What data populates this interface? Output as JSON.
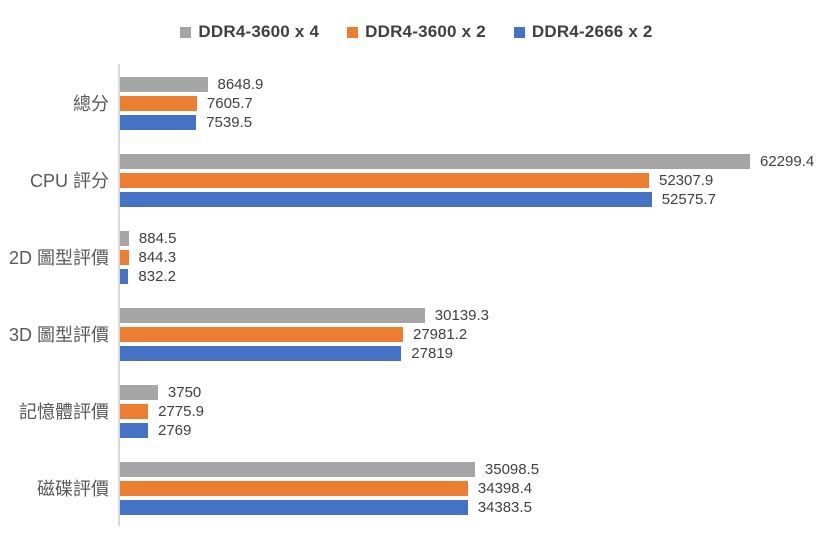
{
  "legend": {
    "items": [
      {
        "label": "DDR4-3600 x 4",
        "color": "#A5A5A5"
      },
      {
        "label": "DDR4-3600 x 2",
        "color": "#ED7D31"
      },
      {
        "label": "DDR4-2666 x 2",
        "color": "#4472C4"
      }
    ]
  },
  "chart_data": {
    "type": "bar",
    "orientation": "horizontal",
    "title": "",
    "xlabel": "",
    "ylabel": "",
    "value_axis_hidden": true,
    "grid": false,
    "data_labels": true,
    "legend_position": "top",
    "axis_line_color": "#D9D9D9",
    "categories": [
      "總分",
      "CPU 評分",
      "2D 圖型評價",
      "3D 圖型評價",
      "記憶體評價",
      "磁碟評價"
    ],
    "series": [
      {
        "name": "DDR4-3600 x 4",
        "color": "#A5A5A5",
        "values": [
          8648.9,
          62299.4,
          884.5,
          30139.3,
          3750,
          35098.5
        ],
        "labels": [
          "8648.9",
          "62299.4",
          "884.5",
          "30139.3",
          "3750",
          "35098.5"
        ]
      },
      {
        "name": "DDR4-3600 x 2",
        "color": "#ED7D31",
        "values": [
          7605.7,
          52307.9,
          844.3,
          27981.2,
          2775.9,
          34398.4
        ],
        "labels": [
          "7605.7",
          "52307.9",
          "844.3",
          "27981.2",
          "2775.9",
          "34398.4"
        ]
      },
      {
        "name": "DDR4-2666 x 2",
        "color": "#4472C4",
        "values": [
          7539.5,
          52575.7,
          832.2,
          27819,
          2769,
          34383.5
        ],
        "labels": [
          "7539.5",
          "52575.7",
          "832.2",
          "27819",
          "2769",
          "34383.5"
        ]
      }
    ]
  }
}
